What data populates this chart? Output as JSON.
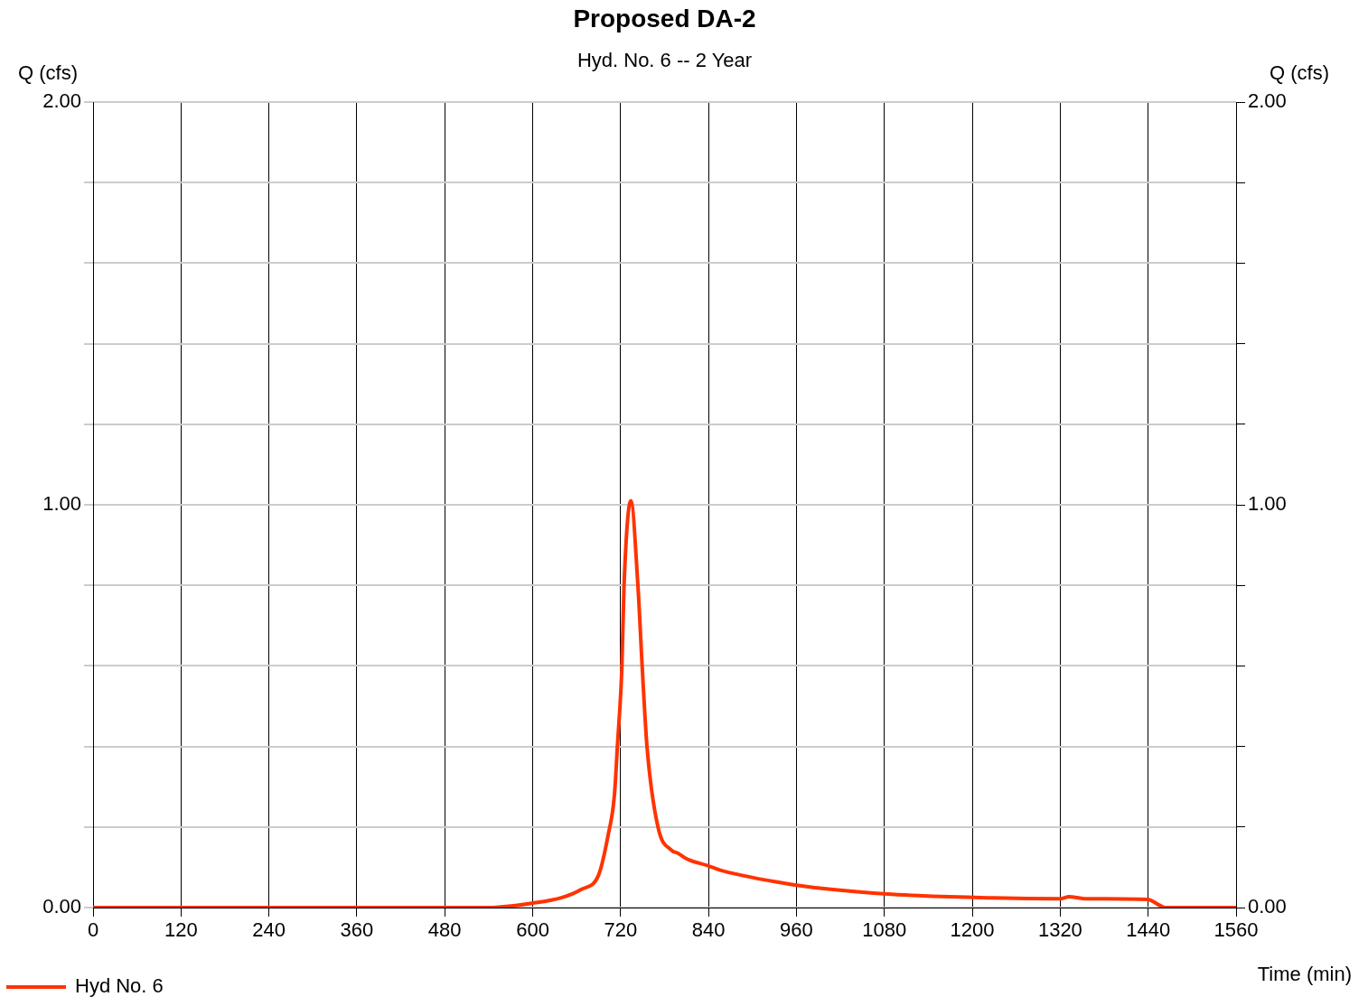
{
  "chart_data": {
    "type": "line",
    "title": "Proposed DA-2",
    "subtitle": "Hyd. No. 6 -- 2 Year",
    "xlabel": "Time (min)",
    "ylabel": "Q (cfs)",
    "y2label": "Q (cfs)",
    "series": [
      {
        "name": "Hyd No. 6",
        "color": "#ff3300",
        "x": [
          0,
          540,
          600,
          640,
          666,
          690,
          703,
          711.6,
          715.6,
          721.8,
          724.7,
          734,
          743.6,
          749.4,
          756,
          771,
          789.6,
          798,
          810,
          839,
          859.5,
          958,
          983,
          1090,
          1229.5,
          1320,
          1332,
          1353,
          1439,
          1464,
          1560
        ],
        "values": [
          0,
          0,
          0.011,
          0.025,
          0.045,
          0.081,
          0.18,
          0.28,
          0.4,
          0.6,
          0.8,
          1.01,
          0.8,
          0.6,
          0.4,
          0.2,
          0.142,
          0.135,
          0.121,
          0.104,
          0.091,
          0.056,
          0.05,
          0.033,
          0.024,
          0.022,
          0.027,
          0.022,
          0.02,
          0,
          0
        ]
      }
    ],
    "xlim": [
      0,
      1560
    ],
    "xticks": [
      0,
      120,
      240,
      360,
      480,
      600,
      720,
      840,
      960,
      1080,
      1200,
      1320,
      1440,
      1560
    ],
    "ylim": [
      0,
      2
    ],
    "yticks": [
      {
        "value": 0,
        "label": "0.00"
      },
      {
        "value": 0.2,
        "label": null
      },
      {
        "value": 0.4,
        "label": null
      },
      {
        "value": 0.6,
        "label": null
      },
      {
        "value": 0.8,
        "label": null
      },
      {
        "value": 1,
        "label": "1.00"
      },
      {
        "value": 1.2,
        "label": null
      },
      {
        "value": 1.4,
        "label": null
      },
      {
        "value": 1.6,
        "label": null
      },
      {
        "value": 1.8,
        "label": null
      },
      {
        "value": 2,
        "label": "2.00"
      }
    ],
    "y2lim": [
      0,
      2
    ],
    "y2ticks": [
      {
        "value": 0,
        "label": "0.00"
      },
      {
        "value": 0.2,
        "label": null
      },
      {
        "value": 0.4,
        "label": null
      },
      {
        "value": 0.6,
        "label": null
      },
      {
        "value": 0.8,
        "label": null
      },
      {
        "value": 1,
        "label": "1.00"
      },
      {
        "value": 1.2,
        "label": null
      },
      {
        "value": 1.4,
        "label": null
      },
      {
        "value": 1.6,
        "label": null
      },
      {
        "value": 1.8,
        "label": null
      },
      {
        "value": 2,
        "label": "2.00"
      }
    ],
    "grid": true,
    "legend": "bottom left",
    "marker": "none",
    "line_style": "solid"
  }
}
